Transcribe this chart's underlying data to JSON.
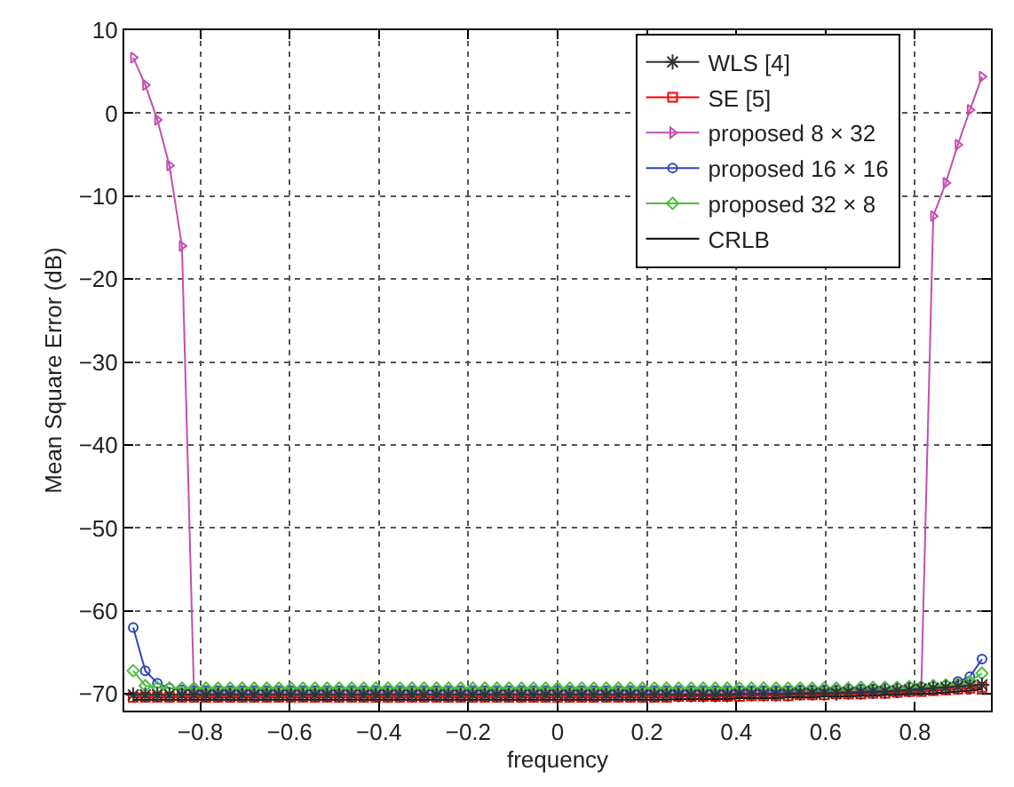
{
  "chart_data": {
    "type": "line",
    "xlabel": "frequency",
    "ylabel": "Mean Square Error (dB)",
    "x": [
      -0.95,
      -0.923,
      -0.896,
      -0.869,
      -0.841,
      -0.814,
      -0.787,
      -0.76,
      -0.733,
      -0.706,
      -0.679,
      -0.651,
      -0.624,
      -0.597,
      -0.57,
      -0.543,
      -0.516,
      -0.489,
      -0.461,
      -0.434,
      -0.407,
      -0.38,
      -0.353,
      -0.326,
      -0.299,
      -0.271,
      -0.244,
      -0.217,
      -0.19,
      -0.163,
      -0.136,
      -0.109,
      -0.081,
      -0.054,
      -0.027,
      0,
      0.027,
      0.054,
      0.081,
      0.109,
      0.136,
      0.163,
      0.19,
      0.217,
      0.244,
      0.271,
      0.299,
      0.326,
      0.353,
      0.38,
      0.407,
      0.434,
      0.461,
      0.489,
      0.516,
      0.543,
      0.57,
      0.597,
      0.624,
      0.651,
      0.679,
      0.706,
      0.733,
      0.76,
      0.787,
      0.814,
      0.841,
      0.869,
      0.896,
      0.923,
      0.95
    ],
    "series": [
      {
        "name": "WLS [4]",
        "color": "#333333",
        "marker": "cross",
        "values": [
          -70.1,
          -70.1,
          -70.1,
          -70.1,
          -70.1,
          -70.1,
          -70.1,
          -70.1,
          -70.1,
          -70.1,
          -70.1,
          -70.1,
          -70.1,
          -70.1,
          -70.1,
          -70.1,
          -70.1,
          -70.1,
          -70.1,
          -70.1,
          -70.1,
          -70.1,
          -70.1,
          -70.1,
          -70.1,
          -70.1,
          -70.1,
          -70.1,
          -70.1,
          -70.1,
          -70.1,
          -70.1,
          -70.1,
          -70.1,
          -70.1,
          -70.1,
          -70.1,
          -70.1,
          -70.1,
          -70.1,
          -70.1,
          -70.1,
          -70.1,
          -70.1,
          -70.1,
          -70.1,
          -70.1,
          -70.1,
          -70.1,
          -70.1,
          -70.0,
          -70.0,
          -70.0,
          -70.0,
          -70.0,
          -69.9,
          -69.9,
          -69.9,
          -69.9,
          -69.8,
          -69.8,
          -69.7,
          -69.7,
          -69.6,
          -69.5,
          -69.4,
          -69.3,
          -69.2,
          -69.1,
          -69.0,
          -68.9
        ]
      },
      {
        "name": "SE [5]",
        "color": "#ff0000",
        "marker": "square",
        "values": [
          -70.4,
          -70.4,
          -70.4,
          -70.4,
          -70.4,
          -70.4,
          -70.4,
          -70.4,
          -70.4,
          -70.4,
          -70.4,
          -70.4,
          -70.4,
          -70.4,
          -70.4,
          -70.4,
          -70.4,
          -70.4,
          -70.4,
          -70.4,
          -70.4,
          -70.4,
          -70.4,
          -70.4,
          -70.4,
          -70.4,
          -70.4,
          -70.4,
          -70.4,
          -70.4,
          -70.4,
          -70.4,
          -70.4,
          -70.4,
          -70.4,
          -70.4,
          -70.4,
          -70.4,
          -70.4,
          -70.4,
          -70.4,
          -70.4,
          -70.4,
          -70.4,
          -70.4,
          -70.3,
          -70.3,
          -70.3,
          -70.3,
          -70.3,
          -70.3,
          -70.2,
          -70.2,
          -70.2,
          -70.2,
          -70.1,
          -70.1,
          -70.1,
          -70.0,
          -70.0,
          -70.0,
          -69.9,
          -69.9,
          -69.8,
          -69.7,
          -69.7,
          -69.6,
          -69.5,
          -69.4,
          -69.3,
          -69.2
        ]
      },
      {
        "name": "proposed 8 × 32",
        "color": "#c34fae",
        "marker": "triangle",
        "values": [
          6.7,
          3.4,
          -0.8,
          -6.3,
          -16,
          -69.9,
          -69.9,
          -69.9,
          -69.9,
          -69.9,
          -69.9,
          -69.9,
          -69.9,
          -69.9,
          -69.9,
          -69.9,
          -69.9,
          -69.9,
          -69.9,
          -69.9,
          -69.9,
          -69.9,
          -69.9,
          -69.9,
          -69.9,
          -69.9,
          -69.9,
          -69.9,
          -69.9,
          -69.9,
          -69.9,
          -69.9,
          -69.9,
          -69.9,
          -69.9,
          -69.9,
          -69.9,
          -69.9,
          -69.9,
          -69.9,
          -69.9,
          -69.9,
          -69.9,
          -69.9,
          -69.9,
          -69.9,
          -69.9,
          -69.9,
          -69.9,
          -69.9,
          -69.9,
          -69.9,
          -69.9,
          -69.8,
          -69.8,
          -69.8,
          -69.8,
          -69.7,
          -69.7,
          -69.7,
          -69.7,
          -69.6,
          -69.6,
          -69.6,
          -69.5,
          -69.5,
          -12.4,
          -8.4,
          -3.8,
          0.4,
          4.4
        ]
      },
      {
        "name": "proposed 16 × 16",
        "color": "#2b47b8",
        "marker": "circle",
        "values": [
          -62,
          -67.2,
          -68.7,
          -69.3,
          -69.5,
          -69.6,
          -69.6,
          -69.6,
          -69.6,
          -69.6,
          -69.6,
          -69.6,
          -69.6,
          -69.6,
          -69.6,
          -69.6,
          -69.6,
          -69.6,
          -69.6,
          -69.6,
          -69.6,
          -69.6,
          -69.6,
          -69.6,
          -69.6,
          -69.6,
          -69.6,
          -69.6,
          -69.6,
          -69.6,
          -69.6,
          -69.6,
          -69.6,
          -69.6,
          -69.6,
          -69.6,
          -69.6,
          -69.6,
          -69.6,
          -69.6,
          -69.6,
          -69.6,
          -69.6,
          -69.6,
          -69.6,
          -69.6,
          -69.6,
          -69.6,
          -69.6,
          -69.6,
          -69.6,
          -69.6,
          -69.6,
          -69.6,
          -69.6,
          -69.5,
          -69.5,
          -69.5,
          -69.5,
          -69.4,
          -69.4,
          -69.4,
          -69.3,
          -69.3,
          -69.2,
          -69.2,
          -69.1,
          -69.0,
          -68.5,
          -67.9,
          -65.8
        ]
      },
      {
        "name": "proposed 32 × 8",
        "color": "#4cbf3c",
        "marker": "diamond",
        "values": [
          -67.2,
          -69.0,
          -69.2,
          -69.3,
          -69.3,
          -69.3,
          -69.3,
          -69.3,
          -69.3,
          -69.3,
          -69.3,
          -69.3,
          -69.3,
          -69.3,
          -69.3,
          -69.3,
          -69.3,
          -69.3,
          -69.3,
          -69.3,
          -69.3,
          -69.3,
          -69.3,
          -69.3,
          -69.3,
          -69.3,
          -69.3,
          -69.3,
          -69.3,
          -69.3,
          -69.3,
          -69.3,
          -69.3,
          -69.3,
          -69.3,
          -69.3,
          -69.3,
          -69.3,
          -69.3,
          -69.3,
          -69.3,
          -69.3,
          -69.3,
          -69.3,
          -69.3,
          -69.3,
          -69.3,
          -69.3,
          -69.3,
          -69.3,
          -69.3,
          -69.3,
          -69.3,
          -69.3,
          -69.3,
          -69.3,
          -69.3,
          -69.3,
          -69.3,
          -69.3,
          -69.2,
          -69.2,
          -69.2,
          -69.2,
          -69.1,
          -69.1,
          -69.0,
          -68.9,
          -68.8,
          -68.5,
          -67.5
        ]
      },
      {
        "name": "CRLB",
        "color": "#000000",
        "marker": "none",
        "values": [
          -70.7,
          -70.7,
          -70.7,
          -70.7,
          -70.7,
          -70.7,
          -70.7,
          -70.7,
          -70.7,
          -70.7,
          -70.7,
          -70.7,
          -70.7,
          -70.7,
          -70.7,
          -70.7,
          -70.7,
          -70.7,
          -70.7,
          -70.7,
          -70.7,
          -70.7,
          -70.7,
          -70.7,
          -70.7,
          -70.7,
          -70.7,
          -70.7,
          -70.7,
          -70.7,
          -70.7,
          -70.7,
          -70.7,
          -70.7,
          -70.7,
          -70.7,
          -70.7,
          -70.7,
          -70.7,
          -70.7,
          -70.7,
          -70.7,
          -70.7,
          -70.7,
          -70.7,
          -70.6,
          -70.6,
          -70.6,
          -70.6,
          -70.6,
          -70.5,
          -70.5,
          -70.5,
          -70.5,
          -70.4,
          -70.4,
          -70.4,
          -70.3,
          -70.3,
          -70.3,
          -70.2,
          -70.2,
          -70.1,
          -70.1,
          -70.0,
          -70.0,
          -69.9,
          -69.8,
          -69.7,
          -69.6,
          -69.4
        ]
      }
    ],
    "xlim": [
      -0.97,
      0.97
    ],
    "xticks": [
      -0.8,
      -0.6,
      -0.4,
      -0.2,
      0,
      0.2,
      0.4,
      0.6,
      0.8
    ],
    "ylim": [
      -72,
      10
    ],
    "yticks": [
      -70,
      -60,
      -50,
      -40,
      -30,
      -20,
      -10,
      0,
      10
    ],
    "grid": true,
    "legend": "top right",
    "line_style": "solid"
  }
}
